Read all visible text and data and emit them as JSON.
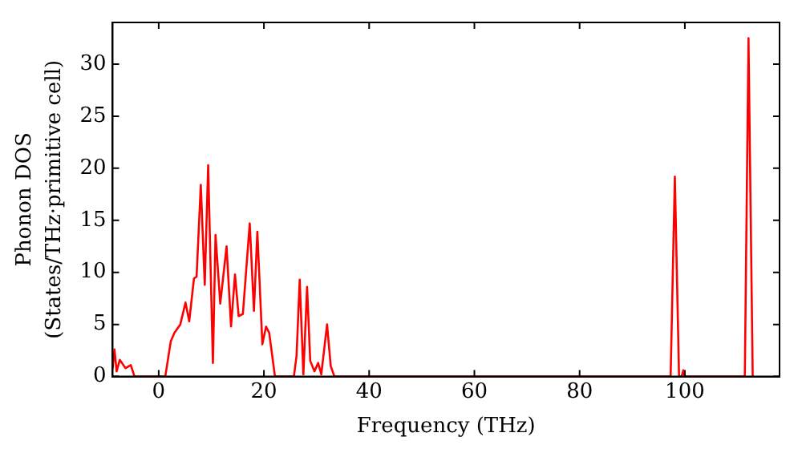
{
  "chart_data": {
    "type": "line",
    "xlabel": "Frequency (THz)",
    "ylabel": "Phonon DOS\n(States/THz·primitive cell)",
    "xlim": [
      -8.75,
      118
    ],
    "ylim": [
      0,
      34
    ],
    "xticks": [
      0,
      20,
      40,
      60,
      80,
      100
    ],
    "yticks": [
      0,
      5,
      10,
      15,
      20,
      25,
      30
    ],
    "grid": false,
    "legend": false,
    "marker": "none",
    "line_style": "solid",
    "series": [
      {
        "color": "#ff0000",
        "x": [
          -8.75,
          -8.4,
          -8.0,
          -7.4,
          -6.3,
          -5.3,
          -4.6,
          1.25,
          2.3,
          3.0,
          4.1,
          5.1,
          5.8,
          6.7,
          7.2,
          8.0,
          8.75,
          9.4,
          10.3,
          10.8,
          11.7,
          12.9,
          13.75,
          14.5,
          15.2,
          16.0,
          17.3,
          18.1,
          18.75,
          19.7,
          20.4,
          21.0,
          22.1,
          25.7,
          26.2,
          26.8,
          27.5,
          28.2,
          28.8,
          29.6,
          30.3,
          30.9,
          32.0,
          32.7,
          33.4,
          97.3,
          98.1,
          98.9,
          99.4,
          99.7,
          100.0,
          111.4,
          112.1,
          112.9
        ],
        "values": [
          0.8,
          2.6,
          0.5,
          1.6,
          0.8,
          1.1,
          0,
          0,
          3.4,
          4.2,
          5.0,
          7.1,
          5.3,
          9.4,
          9.6,
          18.4,
          8.8,
          20.3,
          1.3,
          13.6,
          7.0,
          12.5,
          4.8,
          9.8,
          5.8,
          6.0,
          14.7,
          6.3,
          13.9,
          3.1,
          4.8,
          4.2,
          0,
          0,
          2,
          9.3,
          0.2,
          8.6,
          1.5,
          0.5,
          1.3,
          0.2,
          5.0,
          1,
          0,
          0,
          19.2,
          0,
          0,
          0.6,
          0,
          0,
          32.5,
          0
        ]
      }
    ]
  }
}
